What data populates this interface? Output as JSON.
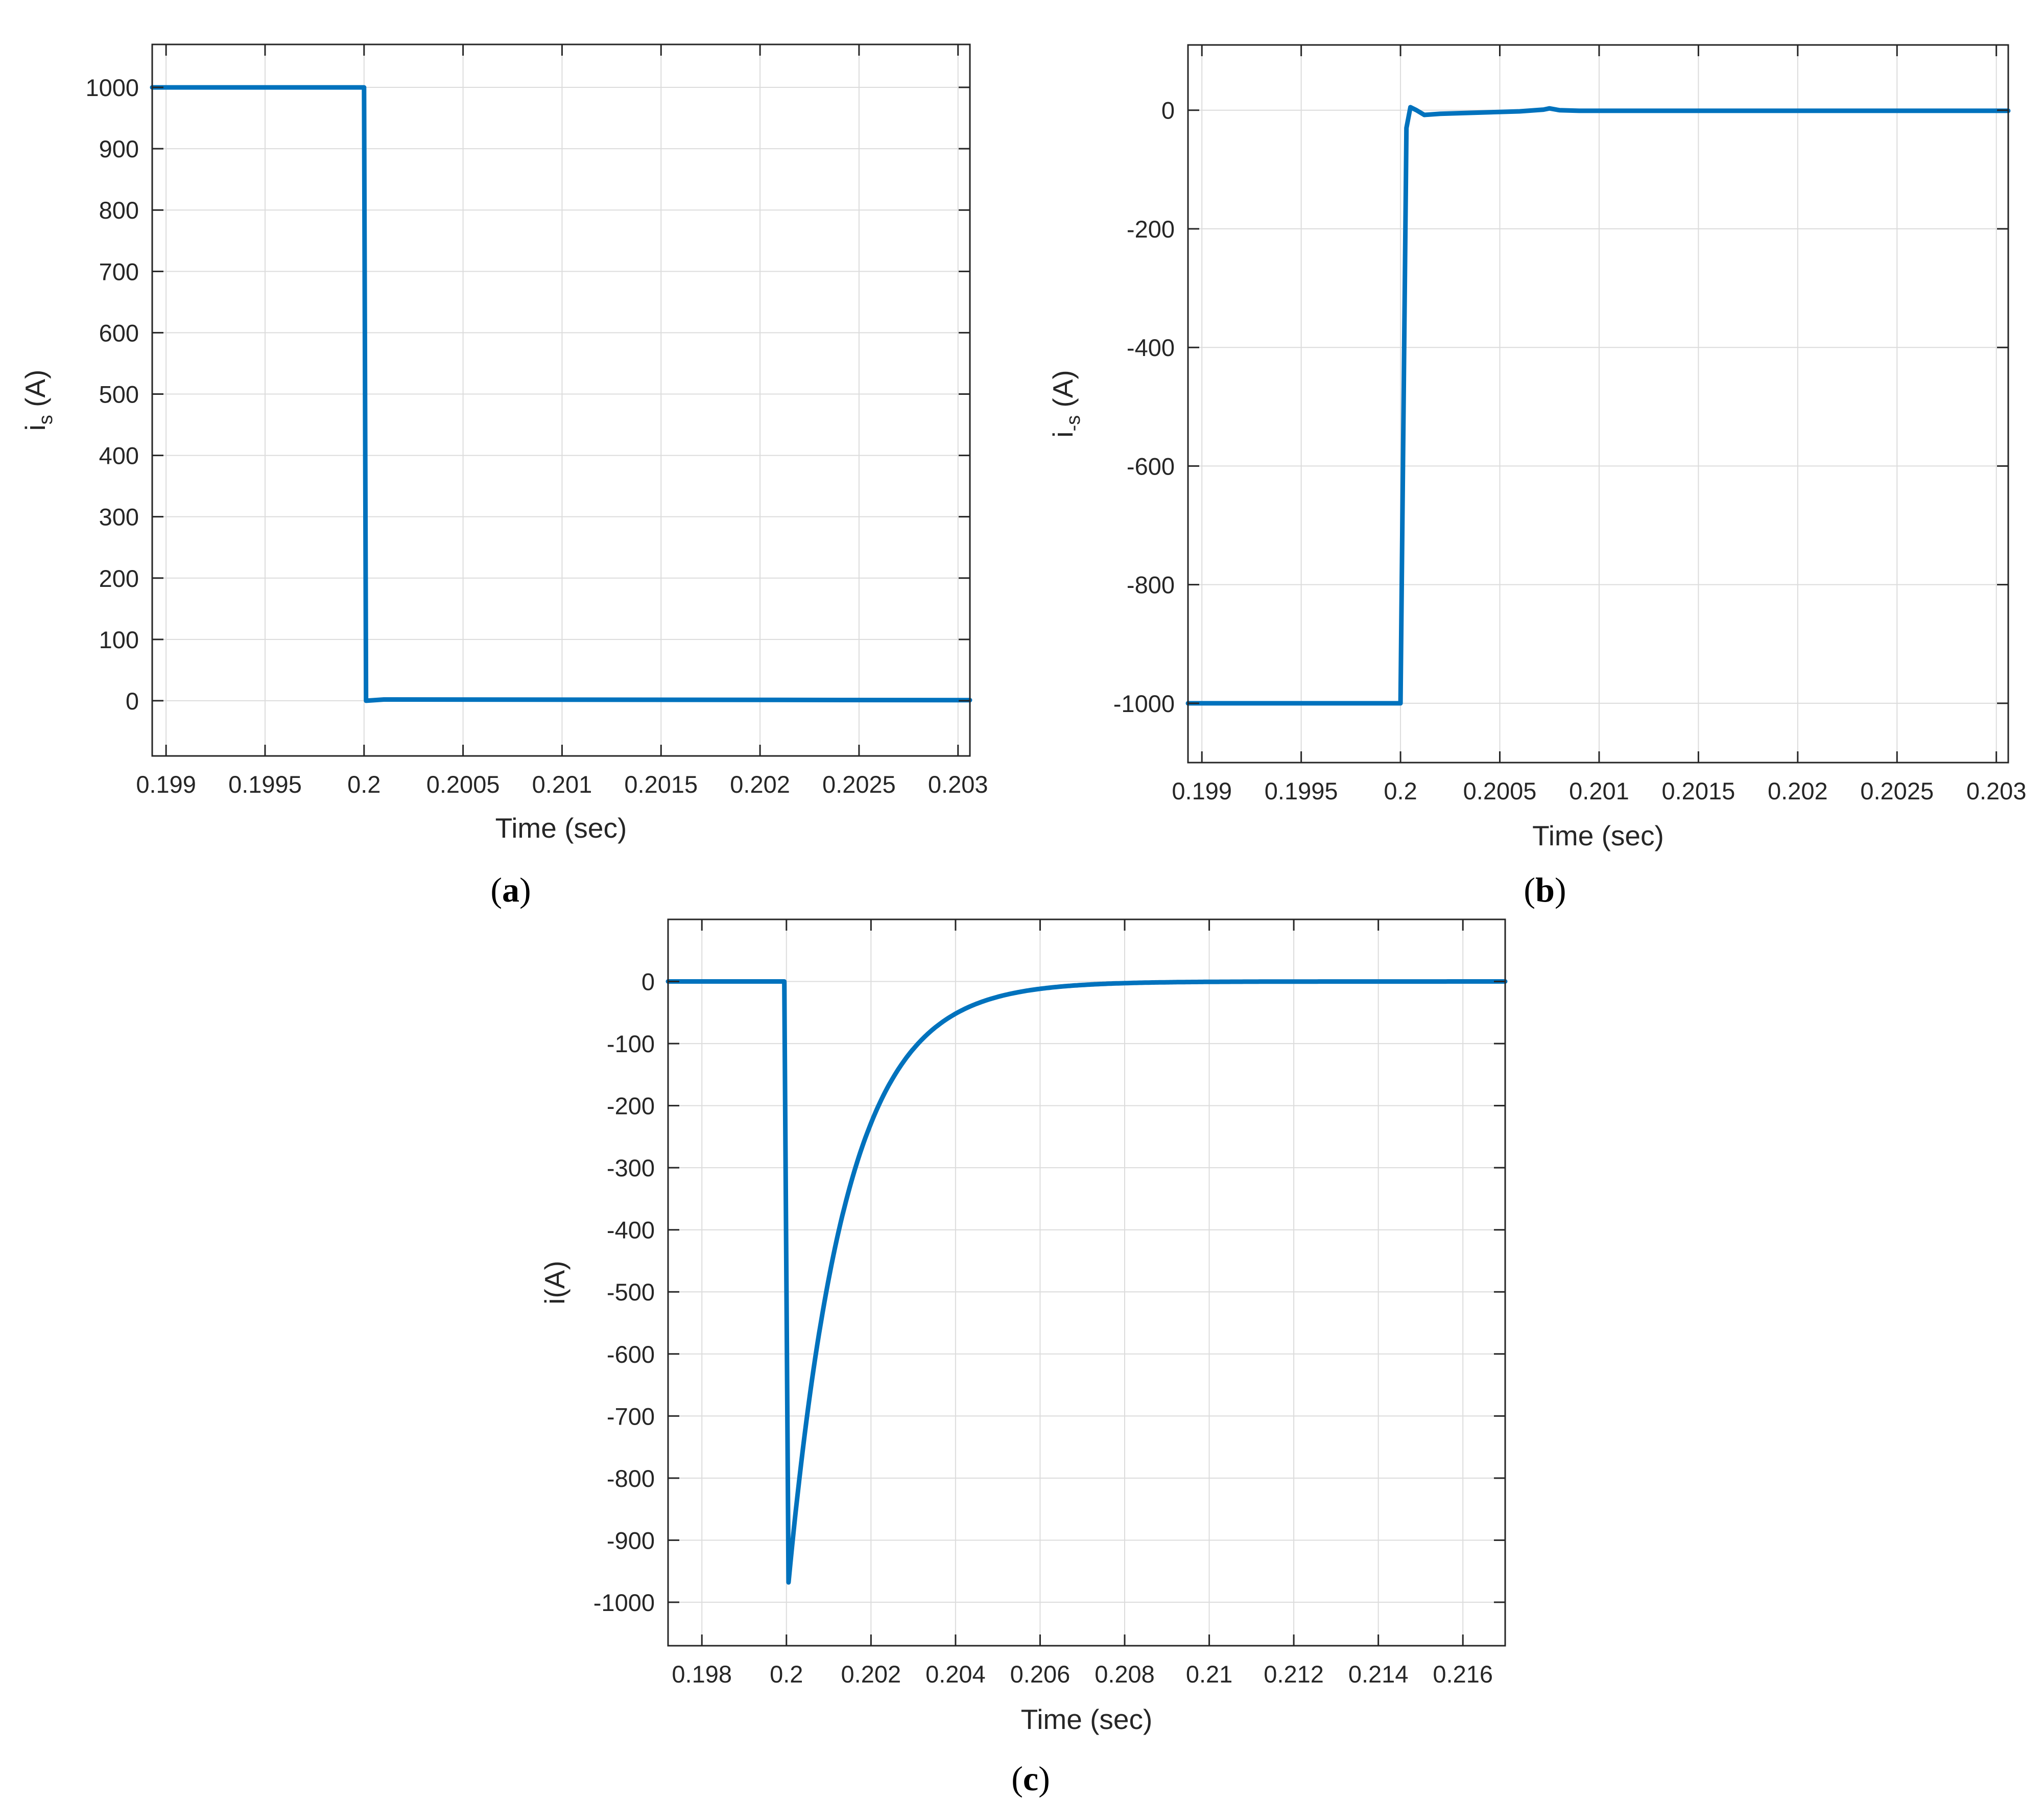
{
  "chart_data": [
    {
      "id": "a",
      "type": "line",
      "panel_label": "a",
      "xlabel": "Time (sec)",
      "ylabel": "i",
      "ylabel_sub": "s",
      "ylabel_unit": " (A)",
      "xlim": [
        0.19893,
        0.20306
      ],
      "ylim": [
        -90,
        1070
      ],
      "xticks": [
        0.199,
        0.1995,
        0.2,
        0.2005,
        0.201,
        0.2015,
        0.202,
        0.2025,
        0.203
      ],
      "xtick_labels": [
        "0.199",
        "0.1995",
        "0.2",
        "0.2005",
        "0.201",
        "0.2015",
        "0.202",
        "0.2025",
        "0.203"
      ],
      "yticks": [
        0,
        100,
        200,
        300,
        400,
        500,
        600,
        700,
        800,
        900,
        1000
      ],
      "ytick_labels": [
        "0",
        "100",
        "200",
        "300",
        "400",
        "500",
        "600",
        "700",
        "800",
        "900",
        "1000"
      ],
      "grid": true,
      "color": "#0072BD",
      "series": [
        {
          "x": [
            0.19893,
            0.19999,
            0.2,
            0.20001,
            0.2001,
            0.20306
          ],
          "y": [
            1000,
            1000,
            1000,
            0,
            2,
            1
          ]
        }
      ]
    },
    {
      "id": "b",
      "type": "line",
      "panel_label": "b",
      "xlabel": "Time (sec)",
      "ylabel": "i",
      "ylabel_sub": "-s",
      "ylabel_unit": " (A)",
      "xlim": [
        0.19893,
        0.20306
      ],
      "ylim": [
        -1100,
        110
      ],
      "xticks": [
        0.199,
        0.1995,
        0.2,
        0.2005,
        0.201,
        0.2015,
        0.202,
        0.2025,
        0.203
      ],
      "xtick_labels": [
        "0.199",
        "0.1995",
        "0.2",
        "0.2005",
        "0.201",
        "0.2015",
        "0.202",
        "0.2025",
        "0.203"
      ],
      "yticks": [
        -1000,
        -800,
        -600,
        -400,
        -200,
        0
      ],
      "ytick_labels": [
        "-1000",
        "-800",
        "-600",
        "-400",
        "-200",
        "0"
      ],
      "grid": true,
      "color": "#0072BD",
      "series": [
        {
          "x": [
            0.19893,
            0.19999,
            0.2,
            0.20003,
            0.20005,
            0.20008,
            0.20012,
            0.2002,
            0.2004,
            0.2006,
            0.20072,
            0.20075,
            0.2008,
            0.2009,
            0.20306
          ],
          "y": [
            -1000,
            -1000,
            -1000,
            -30,
            5,
            0,
            -8,
            -6,
            -4,
            -2,
            1,
            3,
            0,
            -1,
            -1
          ]
        }
      ]
    },
    {
      "id": "c",
      "type": "line",
      "panel_label": "c",
      "xlabel": "Time (sec)",
      "ylabel": "i(A)",
      "ylabel_sub": "",
      "ylabel_unit": "",
      "xlim": [
        0.1972,
        0.217
      ],
      "ylim": [
        -1070,
        100
      ],
      "xticks": [
        0.198,
        0.2,
        0.202,
        0.204,
        0.206,
        0.208,
        0.21,
        0.212,
        0.214,
        0.216
      ],
      "xtick_labels": [
        "0.198",
        "0.2",
        "0.202",
        "0.204",
        "0.206",
        "0.208",
        "0.21",
        "0.212",
        "0.214",
        "0.216"
      ],
      "yticks": [
        -1000,
        -900,
        -800,
        -700,
        -600,
        -500,
        -400,
        -300,
        -200,
        -100,
        0
      ],
      "ytick_labels": [
        "-1000",
        "-900",
        "-800",
        "-700",
        "-600",
        "-500",
        "-400",
        "-300",
        "-200",
        "-100",
        "0"
      ],
      "grid": true,
      "color": "#0072BD",
      "series": [
        {
          "model": "step-exp",
          "t0": 0.19995,
          "t_peak": 0.20005,
          "peak": -968,
          "tau": 0.00135,
          "x_start": 0.1972,
          "x_end": 0.217
        }
      ]
    }
  ]
}
